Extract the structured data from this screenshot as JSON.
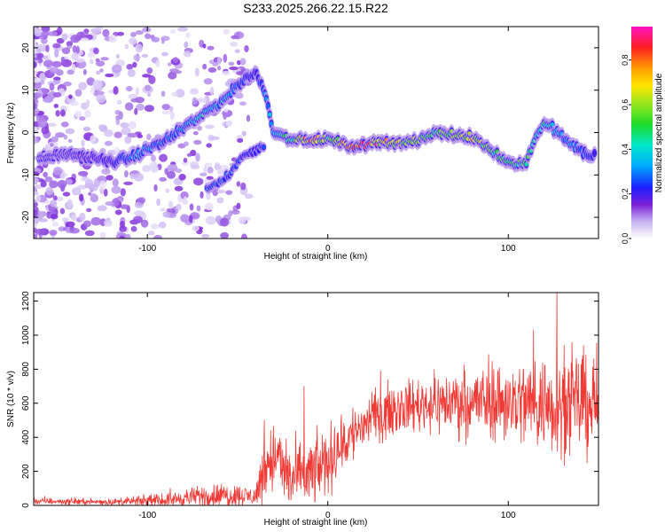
{
  "title": "S233.2025.266.22.15.R22",
  "chart_data": [
    {
      "type": "heatmap",
      "name": "spectrogram",
      "xlabel": "Height of straight line (km)",
      "ylabel": "Frequency (Hz)",
      "xlim": [
        -163,
        150
      ],
      "ylim": [
        -25,
        25
      ],
      "xticks": [
        -100,
        0,
        100
      ],
      "yticks": [
        -20,
        -10,
        0,
        10,
        20
      ],
      "ridge": {
        "x": [
          -160,
          -145,
          -130,
          -120,
          -110,
          -100,
          -90,
          -80,
          -70,
          -60,
          -55,
          -50,
          -45,
          -40,
          -35,
          -30,
          -20,
          -10,
          0,
          10,
          20,
          30,
          40,
          50,
          60,
          70,
          80,
          90,
          100,
          105,
          110,
          115,
          120,
          125,
          130,
          135,
          140,
          145,
          148
        ],
        "freq": [
          -6,
          -5,
          -6,
          -7,
          -6,
          -4,
          -2,
          1,
          4,
          7,
          9,
          11,
          13,
          14,
          10,
          0,
          -1.5,
          -2,
          -1.5,
          -3,
          -3,
          -2,
          -2.5,
          -2,
          0,
          -0.5,
          -1,
          -4,
          -7,
          -7.5,
          -7,
          -1,
          2,
          1,
          -1,
          -3,
          -4,
          -6,
          -5
        ],
        "amp": [
          0.1,
          0.12,
          0.15,
          0.2,
          0.3,
          0.35,
          0.3,
          0.35,
          0.4,
          0.35,
          0.35,
          0.3,
          0.25,
          0.2,
          0.3,
          0.4,
          0.55,
          0.85,
          0.55,
          0.8,
          0.85,
          0.75,
          0.65,
          0.6,
          0.55,
          0.65,
          0.7,
          0.55,
          0.55,
          0.5,
          0.55,
          0.4,
          0.45,
          0.4,
          0.35,
          0.3,
          0.3,
          0.25,
          0.2
        ]
      },
      "secondary_branch": {
        "x": [
          -67,
          -60,
          -55,
          -50,
          -45,
          -40,
          -35
        ],
        "freq": [
          -13,
          -12,
          -10,
          -7,
          -5,
          -4,
          -3
        ],
        "amp": [
          0.3,
          0.3,
          0.28,
          0.25,
          0.22,
          0.2,
          0.25
        ]
      },
      "colorbar": {
        "label": "Normalized spectral amplitude",
        "range": [
          0,
          0.95
        ],
        "ticks": [
          0.0,
          0.2,
          0.4,
          0.6,
          0.8
        ],
        "tick_labels": [
          "0.0",
          "0.2",
          "0.4",
          "0.6",
          "0.8"
        ]
      }
    },
    {
      "type": "line",
      "name": "snr",
      "xlabel": "Height of straight line (km)",
      "ylabel": "SNR (10 * v/v)",
      "xlim": [
        -163,
        150
      ],
      "ylim": [
        0,
        1250
      ],
      "xticks": [
        -100,
        0,
        100
      ],
      "yticks": [
        0,
        200,
        400,
        600,
        800,
        1000,
        1200
      ],
      "color": "#ef3a36",
      "trend": {
        "x": [
          -163,
          -120,
          -90,
          -70,
          -50,
          -40,
          -35,
          -30,
          -20,
          -10,
          0,
          10,
          20,
          30,
          40,
          60,
          80,
          100,
          120,
          140,
          150
        ],
        "snr": [
          25,
          20,
          30,
          55,
          60,
          50,
          240,
          290,
          150,
          180,
          260,
          380,
          480,
          540,
          580,
          600,
          610,
          610,
          600,
          600,
          600
        ]
      },
      "noise": {
        "x": [
          -163,
          -120,
          -90,
          -60,
          -40,
          -35,
          -20,
          0,
          20,
          40,
          80,
          120,
          150
        ],
        "amplitude": [
          10,
          10,
          20,
          40,
          30,
          120,
          110,
          110,
          90,
          80,
          110,
          160,
          170
        ]
      },
      "spikes": [
        {
          "x": 127,
          "snr": 1250
        },
        {
          "x": 114,
          "snr": 1030
        },
        {
          "x": 131,
          "snr": 940
        },
        {
          "x": -13,
          "snr": 700
        },
        {
          "x": -35,
          "snr": 500
        }
      ]
    }
  ]
}
